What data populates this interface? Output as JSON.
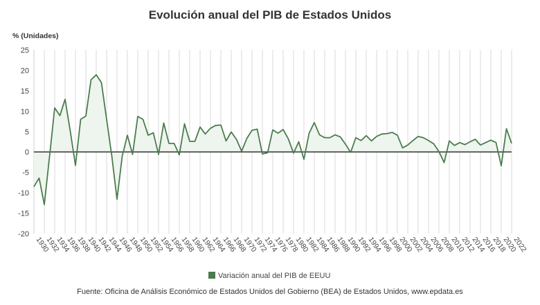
{
  "chart_data": {
    "type": "area",
    "title": "Evolución anual del PIB de Estados Unidos",
    "ylabel": "% (Unidades)",
    "xlabel": "",
    "ylim": [
      -20,
      25
    ],
    "yticks": [
      25,
      20,
      15,
      10,
      5,
      0,
      -5,
      -10,
      -15,
      -20
    ],
    "xticks": [
      1930,
      1932,
      1934,
      1936,
      1938,
      1940,
      1942,
      1944,
      1946,
      1948,
      1950,
      1952,
      1954,
      1956,
      1958,
      1960,
      1962,
      1964,
      1966,
      1968,
      1970,
      1972,
      1974,
      1976,
      1978,
      1980,
      1982,
      1984,
      1986,
      1988,
      1990,
      1992,
      1994,
      1996,
      1998,
      2000,
      2002,
      2004,
      2006,
      2008,
      2010,
      2012,
      2014,
      2016,
      2018,
      2020,
      2022
    ],
    "grid": "vertical",
    "legend_position": "bottom",
    "colors": {
      "line": "#4a7c4e",
      "fill": "#eef4ee",
      "legend": "#4a7c4e",
      "zero": "#222222"
    },
    "series": [
      {
        "name": "Variación anual del PIB de EEUU",
        "x": [
          1930,
          1931,
          1932,
          1933,
          1934,
          1935,
          1936,
          1937,
          1938,
          1939,
          1940,
          1941,
          1942,
          1943,
          1944,
          1945,
          1946,
          1947,
          1948,
          1949,
          1950,
          1951,
          1952,
          1953,
          1954,
          1955,
          1956,
          1957,
          1958,
          1959,
          1960,
          1961,
          1962,
          1963,
          1964,
          1965,
          1966,
          1967,
          1968,
          1969,
          1970,
          1971,
          1972,
          1973,
          1974,
          1975,
          1976,
          1977,
          1978,
          1979,
          1980,
          1981,
          1982,
          1983,
          1984,
          1985,
          1986,
          1987,
          1988,
          1989,
          1990,
          1991,
          1992,
          1993,
          1994,
          1995,
          1996,
          1997,
          1998,
          1999,
          2000,
          2001,
          2002,
          2003,
          2004,
          2005,
          2006,
          2007,
          2008,
          2009,
          2010,
          2011,
          2012,
          2013,
          2014,
          2015,
          2016,
          2017,
          2018,
          2019,
          2020,
          2021,
          2022
        ],
        "values": [
          -8.5,
          -6.4,
          -12.9,
          -1.2,
          10.8,
          8.9,
          12.9,
          5.1,
          -3.3,
          8.0,
          8.8,
          17.7,
          18.9,
          17.0,
          8.0,
          -1.0,
          -11.6,
          -1.1,
          4.1,
          -0.6,
          8.7,
          8.0,
          4.1,
          4.7,
          -0.6,
          7.1,
          2.1,
          2.1,
          -0.7,
          6.9,
          2.6,
          2.6,
          6.1,
          4.4,
          5.8,
          6.5,
          6.6,
          2.7,
          4.9,
          3.1,
          0.2,
          3.3,
          5.3,
          5.6,
          -0.5,
          -0.2,
          5.4,
          4.6,
          5.5,
          3.2,
          -0.3,
          2.5,
          -1.8,
          4.6,
          7.2,
          4.2,
          3.5,
          3.5,
          4.2,
          3.7,
          1.9,
          -0.1,
          3.5,
          2.8,
          4.0,
          2.7,
          3.8,
          4.4,
          4.5,
          4.8,
          4.1,
          1.0,
          1.7,
          2.8,
          3.8,
          3.5,
          2.8,
          2.0,
          0.1,
          -2.6,
          2.7,
          1.6,
          2.3,
          1.8,
          2.5,
          3.1,
          1.7,
          2.3,
          2.9,
          2.3,
          -3.4,
          5.7,
          2.1
        ]
      }
    ]
  },
  "source": "Fuente: Oficina de Análisis Económico de Estados Unidos del Gobierno (BEA) de Estados Unidos, www.epdata.es"
}
